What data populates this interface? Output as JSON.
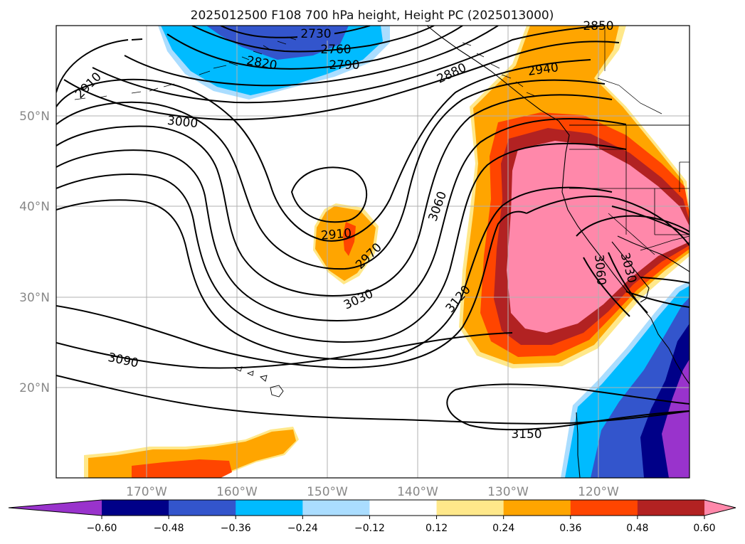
{
  "map": {
    "title": "2025012500 F108 700 hPa height, Height PC (2025013000)",
    "lat_labels": [
      "50°N",
      "40°N",
      "30°N",
      "20°N"
    ],
    "lon_labels": [
      "170°W",
      "160°W",
      "150°W",
      "140°W",
      "130°W",
      "120°W"
    ],
    "contour_labels": [
      "2730",
      "2760",
      "2790",
      "2820",
      "2850",
      "2880",
      "2910",
      "2940",
      "3000",
      "2910",
      "2970",
      "3030",
      "3060",
      "3120",
      "3090",
      "3150",
      "3060",
      "3030"
    ],
    "colors": {
      "purple": "#9933cc",
      "navy": "#000088",
      "royal": "#3355cc",
      "cyan": "#00bbff",
      "lightblue": "#aaddff",
      "white": "#ffffff",
      "yellow": "#ffe88a",
      "orange": "#ffa500",
      "redorange": "#ff4500",
      "firebrick": "#b22222",
      "pink": "#ff88aa",
      "grid": "#b0b0b0",
      "contour": "#000000"
    }
  },
  "colorbar": {
    "ticks": [
      "−0.60",
      "−0.48",
      "−0.36",
      "−0.24",
      "−0.12",
      "0.12",
      "0.24",
      "0.36",
      "0.48",
      "0.60"
    ],
    "bins": [
      "purple",
      "navy",
      "royal",
      "cyan",
      "lightblue",
      "white",
      "yellow",
      "orange",
      "redorange",
      "firebrick",
      "pink"
    ]
  }
}
